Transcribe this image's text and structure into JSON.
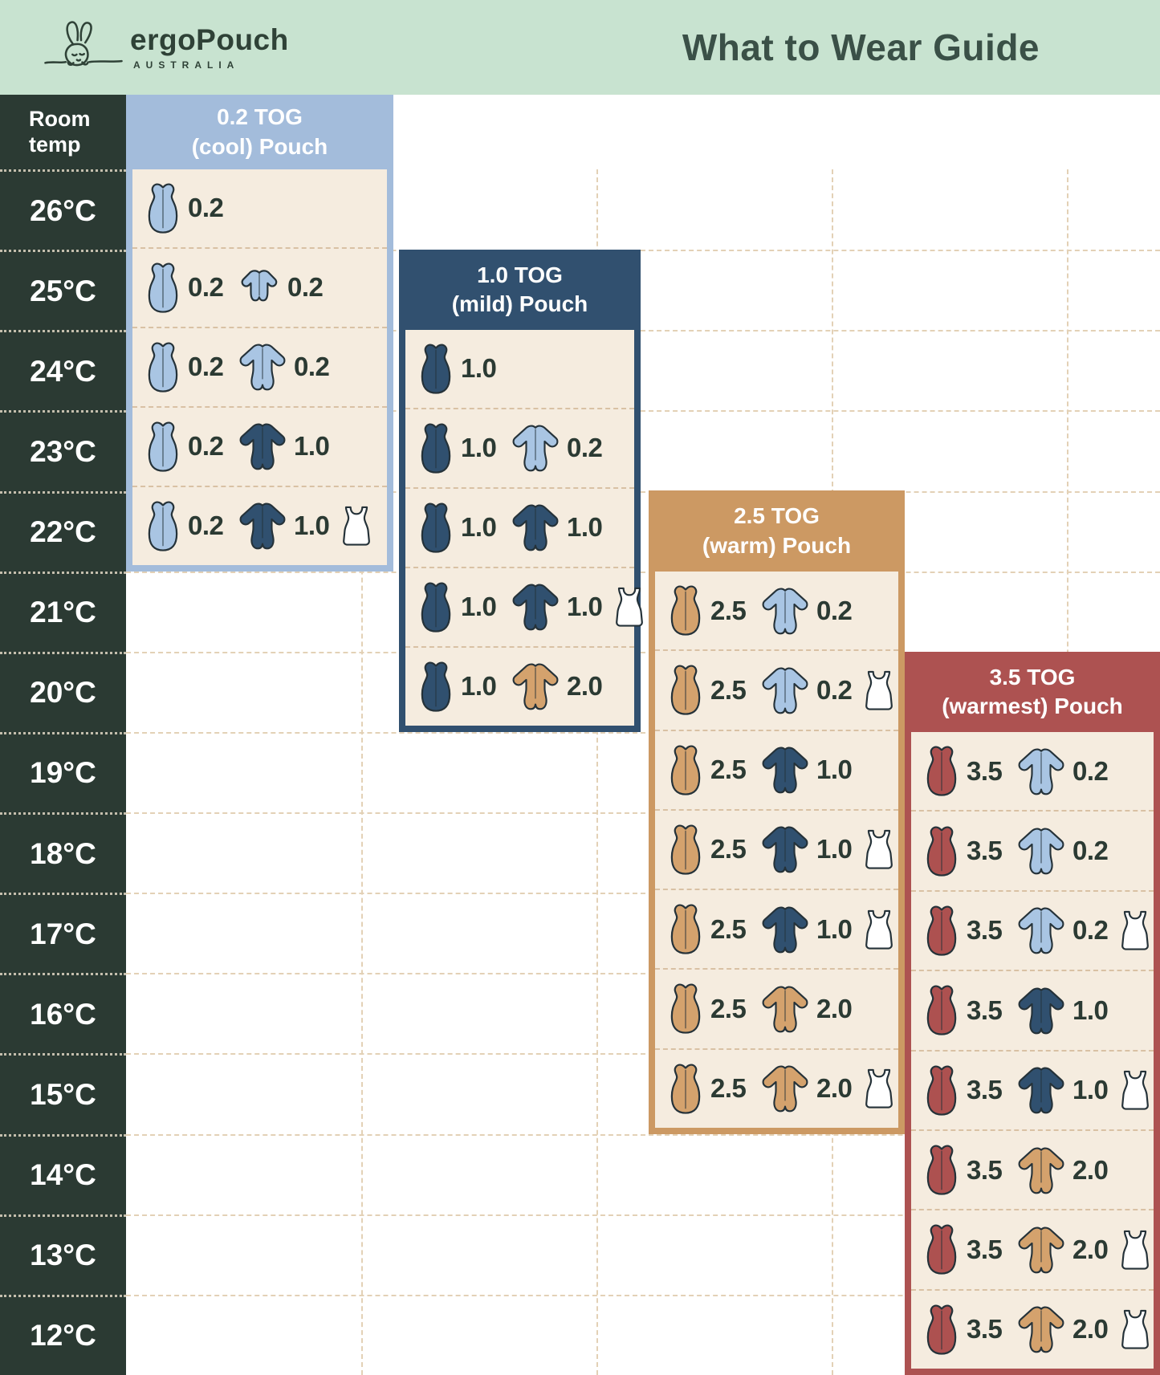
{
  "banner": {
    "logo_text": "ergoPouch",
    "logo_sub": "AUSTRALIA",
    "title": "What to Wear Guide"
  },
  "room_temp_header": "Room temp",
  "temperatures": [
    "26°C",
    "25°C",
    "24°C",
    "23°C",
    "22°C",
    "21°C",
    "20°C",
    "19°C",
    "18°C",
    "17°C",
    "16°C",
    "15°C",
    "14°C",
    "13°C",
    "12°C"
  ],
  "colors": {
    "banner_bg": "#c8e3d0",
    "title_text": "#3a5047",
    "dark_column": "#2b3a33",
    "panel_body": "#f5ecdf",
    "icon_outline": "#253239",
    "grid_dash": "#e3d1b6",
    "panel_dash": "#d9c1a4",
    "temp_text": "#ffffff",
    "icons": {
      "lightblue": "#a9c5e3",
      "navy": "#30506f",
      "tan": "#d4a26d",
      "red": "#ad5150",
      "white": "#ffffff"
    }
  },
  "icon_names": {
    "pouch": "sleeping-pouch-icon",
    "sleepsuit": "sleep-suit-icon",
    "romper": "romper-icon",
    "singlet": "singlet-icon"
  },
  "panels": [
    {
      "key": "cool",
      "title_line1": "0.2 TOG",
      "title_line2": "(cool) Pouch",
      "theme_color": "#a3bcdb",
      "rows": [
        {
          "temp": "26°C",
          "items": [
            {
              "icon": "pouch",
              "color": "lightblue",
              "value": "0.2"
            }
          ]
        },
        {
          "temp": "25°C",
          "items": [
            {
              "icon": "pouch",
              "color": "lightblue",
              "value": "0.2"
            },
            {
              "icon": "romper",
              "color": "lightblue",
              "value": "0.2"
            }
          ]
        },
        {
          "temp": "24°C",
          "items": [
            {
              "icon": "pouch",
              "color": "lightblue",
              "value": "0.2"
            },
            {
              "icon": "sleepsuit",
              "color": "lightblue",
              "value": "0.2"
            }
          ]
        },
        {
          "temp": "23°C",
          "items": [
            {
              "icon": "pouch",
              "color": "lightblue",
              "value": "0.2"
            },
            {
              "icon": "sleepsuit",
              "color": "navy",
              "value": "1.0"
            }
          ]
        },
        {
          "temp": "22°C",
          "items": [
            {
              "icon": "pouch",
              "color": "lightblue",
              "value": "0.2"
            },
            {
              "icon": "sleepsuit",
              "color": "navy",
              "value": "1.0"
            },
            {
              "icon": "singlet",
              "color": "white",
              "value": null
            }
          ]
        }
      ]
    },
    {
      "key": "mild",
      "title_line1": "1.0 TOG",
      "title_line2": "(mild) Pouch",
      "theme_color": "#31506f",
      "rows": [
        {
          "temp": "24°C",
          "items": [
            {
              "icon": "pouch",
              "color": "navy",
              "value": "1.0"
            }
          ]
        },
        {
          "temp": "23°C",
          "items": [
            {
              "icon": "pouch",
              "color": "navy",
              "value": "1.0"
            },
            {
              "icon": "sleepsuit",
              "color": "lightblue",
              "value": "0.2"
            }
          ]
        },
        {
          "temp": "22°C",
          "items": [
            {
              "icon": "pouch",
              "color": "navy",
              "value": "1.0"
            },
            {
              "icon": "sleepsuit",
              "color": "navy",
              "value": "1.0"
            }
          ]
        },
        {
          "temp": "21°C",
          "items": [
            {
              "icon": "pouch",
              "color": "navy",
              "value": "1.0"
            },
            {
              "icon": "sleepsuit",
              "color": "navy",
              "value": "1.0"
            },
            {
              "icon": "singlet",
              "color": "white",
              "value": null
            }
          ]
        },
        {
          "temp": "20°C",
          "items": [
            {
              "icon": "pouch",
              "color": "navy",
              "value": "1.0"
            },
            {
              "icon": "sleepsuit",
              "color": "tan",
              "value": "2.0"
            }
          ]
        }
      ]
    },
    {
      "key": "warm",
      "title_line1": "2.5 TOG",
      "title_line2": "(warm) Pouch",
      "theme_color": "#cc9963",
      "rows": [
        {
          "temp": "21°C",
          "items": [
            {
              "icon": "pouch",
              "color": "tan",
              "value": "2.5"
            },
            {
              "icon": "sleepsuit",
              "color": "lightblue",
              "value": "0.2"
            }
          ]
        },
        {
          "temp": "20°C",
          "items": [
            {
              "icon": "pouch",
              "color": "tan",
              "value": "2.5"
            },
            {
              "icon": "sleepsuit",
              "color": "lightblue",
              "value": "0.2"
            },
            {
              "icon": "singlet",
              "color": "white",
              "value": null
            }
          ]
        },
        {
          "temp": "19°C",
          "items": [
            {
              "icon": "pouch",
              "color": "tan",
              "value": "2.5"
            },
            {
              "icon": "sleepsuit",
              "color": "navy",
              "value": "1.0"
            }
          ]
        },
        {
          "temp": "18°C",
          "items": [
            {
              "icon": "pouch",
              "color": "tan",
              "value": "2.5"
            },
            {
              "icon": "sleepsuit",
              "color": "navy",
              "value": "1.0"
            },
            {
              "icon": "singlet",
              "color": "white",
              "value": null
            }
          ]
        },
        {
          "temp": "17°C",
          "items": [
            {
              "icon": "pouch",
              "color": "tan",
              "value": "2.5"
            },
            {
              "icon": "sleepsuit",
              "color": "navy",
              "value": "1.0"
            },
            {
              "icon": "singlet",
              "color": "white",
              "value": null
            }
          ]
        },
        {
          "temp": "16°C",
          "items": [
            {
              "icon": "pouch",
              "color": "tan",
              "value": "2.5"
            },
            {
              "icon": "sleepsuit",
              "color": "tan",
              "value": "2.0"
            }
          ]
        },
        {
          "temp": "15°C",
          "items": [
            {
              "icon": "pouch",
              "color": "tan",
              "value": "2.5"
            },
            {
              "icon": "sleepsuit",
              "color": "tan",
              "value": "2.0"
            },
            {
              "icon": "singlet",
              "color": "white",
              "value": null
            }
          ]
        }
      ]
    },
    {
      "key": "warmest",
      "title_line1": "3.5 TOG",
      "title_line2": "(warmest) Pouch",
      "theme_color": "#ad5251",
      "rows": [
        {
          "temp": "19°C",
          "items": [
            {
              "icon": "pouch",
              "color": "red",
              "value": "3.5"
            },
            {
              "icon": "sleepsuit",
              "color": "lightblue",
              "value": "0.2"
            }
          ]
        },
        {
          "temp": "18°C",
          "items": [
            {
              "icon": "pouch",
              "color": "red",
              "value": "3.5"
            },
            {
              "icon": "sleepsuit",
              "color": "lightblue",
              "value": "0.2"
            }
          ]
        },
        {
          "temp": "17°C",
          "items": [
            {
              "icon": "pouch",
              "color": "red",
              "value": "3.5"
            },
            {
              "icon": "sleepsuit",
              "color": "lightblue",
              "value": "0.2"
            },
            {
              "icon": "singlet",
              "color": "white",
              "value": null
            }
          ]
        },
        {
          "temp": "16°C",
          "items": [
            {
              "icon": "pouch",
              "color": "red",
              "value": "3.5"
            },
            {
              "icon": "sleepsuit",
              "color": "navy",
              "value": "1.0"
            }
          ]
        },
        {
          "temp": "15°C",
          "items": [
            {
              "icon": "pouch",
              "color": "red",
              "value": "3.5"
            },
            {
              "icon": "sleepsuit",
              "color": "navy",
              "value": "1.0"
            },
            {
              "icon": "singlet",
              "color": "white",
              "value": null
            }
          ]
        },
        {
          "temp": "14°C",
          "items": [
            {
              "icon": "pouch",
              "color": "red",
              "value": "3.5"
            },
            {
              "icon": "sleepsuit",
              "color": "tan",
              "value": "2.0"
            }
          ]
        },
        {
          "temp": "13°C",
          "items": [
            {
              "icon": "pouch",
              "color": "red",
              "value": "3.5"
            },
            {
              "icon": "sleepsuit",
              "color": "tan",
              "value": "2.0"
            },
            {
              "icon": "singlet",
              "color": "white",
              "value": null
            }
          ]
        },
        {
          "temp": "12°C",
          "items": [
            {
              "icon": "pouch",
              "color": "red",
              "value": "3.5"
            },
            {
              "icon": "sleepsuit",
              "color": "tan",
              "value": "2.0"
            },
            {
              "icon": "singlet",
              "color": "white",
              "value": null
            }
          ]
        }
      ]
    }
  ],
  "chart_data": {
    "type": "table",
    "title": "What to Wear Guide",
    "row_label": "Room temp",
    "temperatures_c": [
      26,
      25,
      24,
      23,
      22,
      21,
      20,
      19,
      18,
      17,
      16,
      15,
      14,
      13,
      12
    ],
    "columns": [
      "0.2 TOG (cool) Pouch",
      "1.0 TOG (mild) Pouch",
      "2.5 TOG (warm) Pouch",
      "3.5 TOG (warmest) Pouch"
    ],
    "recommendations": {
      "0.2 TOG (cool) Pouch": {
        "26": "pouch 0.2",
        "25": "pouch 0.2 + short-sleeve romper 0.2",
        "24": "pouch 0.2 + sleep suit 0.2",
        "23": "pouch 0.2 + sleep suit 1.0",
        "22": "pouch 0.2 + sleep suit 1.0 + singlet"
      },
      "1.0 TOG (mild) Pouch": {
        "24": "pouch 1.0",
        "23": "pouch 1.0 + sleep suit 0.2",
        "22": "pouch 1.0 + sleep suit 1.0",
        "21": "pouch 1.0 + sleep suit 1.0 + singlet",
        "20": "pouch 1.0 + sleep suit 2.0"
      },
      "2.5 TOG (warm) Pouch": {
        "21": "pouch 2.5 + sleep suit 0.2",
        "20": "pouch 2.5 + sleep suit 0.2 + singlet",
        "19": "pouch 2.5 + sleep suit 1.0",
        "18": "pouch 2.5 + sleep suit 1.0 + singlet",
        "17": "pouch 2.5 + sleep suit 1.0 + singlet",
        "16": "pouch 2.5 + sleep suit 2.0",
        "15": "pouch 2.5 + sleep suit 2.0 + singlet"
      },
      "3.5 TOG (warmest) Pouch": {
        "19": "pouch 3.5 + sleep suit 0.2",
        "18": "pouch 3.5 + sleep suit 0.2",
        "17": "pouch 3.5 + sleep suit 0.2 + singlet",
        "16": "pouch 3.5 + sleep suit 1.0",
        "15": "pouch 3.5 + sleep suit 1.0 + singlet",
        "14": "pouch 3.5 + sleep suit 2.0",
        "13": "pouch 3.5 + sleep suit 2.0 + singlet",
        "12": "pouch 3.5 + sleep suit 2.0 + singlet"
      }
    }
  }
}
